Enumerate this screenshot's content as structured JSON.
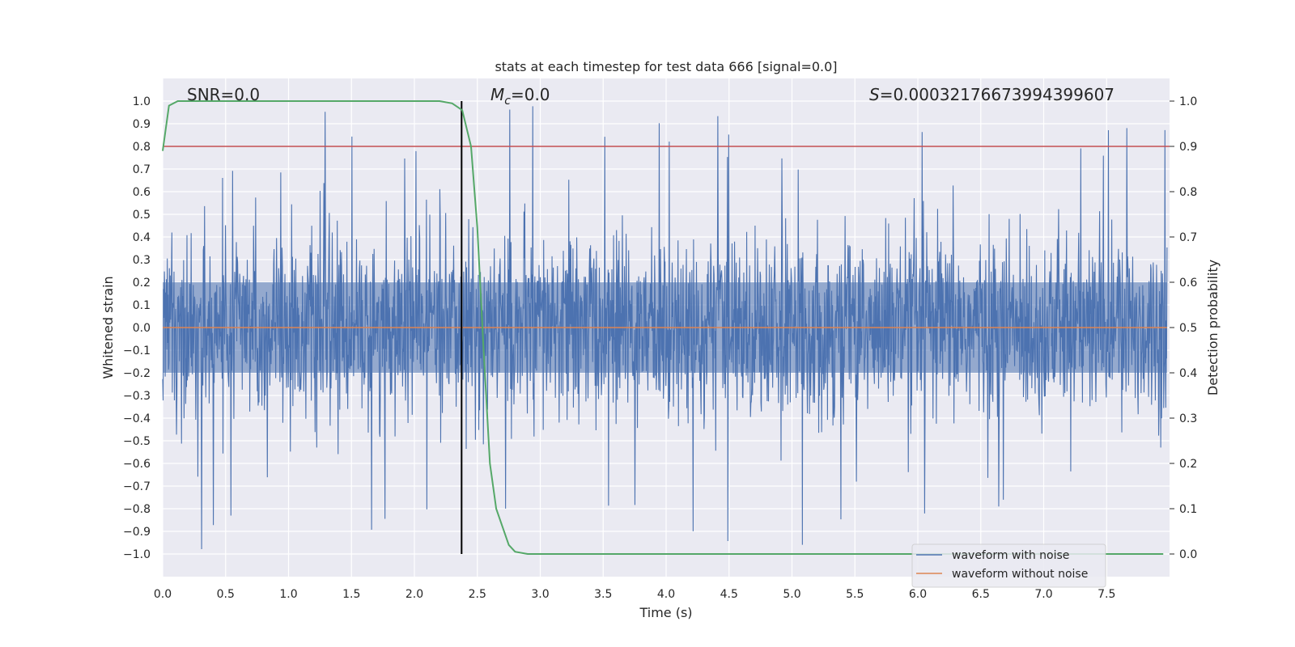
{
  "chart_data": {
    "type": "line",
    "title": "stats at each timestep for test data 666 [signal=0.0]",
    "xlabel": "Time (s)",
    "ylabel": "Whitened strain",
    "y2label": "Detection probability",
    "xlim": [
      0.0,
      8.0
    ],
    "ylim": [
      -1.1,
      1.1
    ],
    "y2lim": [
      -0.05,
      1.05
    ],
    "xticks": [
      "0.0",
      "0.5",
      "1.0",
      "1.5",
      "2.0",
      "2.5",
      "3.0",
      "3.5",
      "4.0",
      "4.5",
      "5.0",
      "5.5",
      "6.0",
      "6.5",
      "7.0",
      "7.5"
    ],
    "yticks": [
      "1.0",
      "0.9",
      "0.8",
      "0.7",
      "0.6",
      "0.5",
      "0.4",
      "0.3",
      "0.2",
      "0.1",
      "0.0",
      "−0.1",
      "−0.2",
      "−0.3",
      "−0.4",
      "−0.5",
      "−0.6",
      "−0.7",
      "−0.8",
      "−0.9",
      "−1.0"
    ],
    "y2ticks": [
      "1.0",
      "0.9",
      "0.8",
      "0.7",
      "0.6",
      "0.5",
      "0.4",
      "0.3",
      "0.2",
      "0.1",
      "0.0"
    ],
    "grid": true,
    "legend_position": "lower-right",
    "annotations": {
      "snr": "SNR=0.0",
      "mc_symbol": "M",
      "mc_sub": "c",
      "mc_value": "=0.0",
      "s_symbol": "S",
      "s_value": "=0.00032176673994399607"
    },
    "threshold_line": {
      "y2": 0.9,
      "color": "#c44e52"
    },
    "vertical_line": {
      "x": 2.375,
      "color": "#000000"
    },
    "series": [
      {
        "name": "waveform with noise",
        "color": "#4c72b0",
        "description_values": "dense noise, amplitude mostly within ±0.5, peaks up to 1.0"
      },
      {
        "name": "waveform without noise",
        "color": "#dd8452",
        "values_constant": 0.0
      },
      {
        "name": "detection probability",
        "color": "#55a868",
        "axis": "right",
        "x": [
          0.0,
          0.05,
          0.12,
          0.3,
          1.0,
          2.0,
          2.2,
          2.3,
          2.38,
          2.45,
          2.5,
          2.55,
          2.6,
          2.65,
          2.7,
          2.75,
          2.8,
          2.9,
          3.0,
          4.0,
          5.0,
          6.0,
          7.0,
          7.95
        ],
        "y": [
          0.89,
          0.99,
          1.0,
          1.0,
          1.0,
          1.0,
          1.0,
          0.995,
          0.98,
          0.9,
          0.72,
          0.45,
          0.2,
          0.1,
          0.06,
          0.02,
          0.005,
          0.0,
          0.0,
          0.0,
          0.0,
          0.0,
          0.0,
          0.0
        ]
      }
    ]
  }
}
